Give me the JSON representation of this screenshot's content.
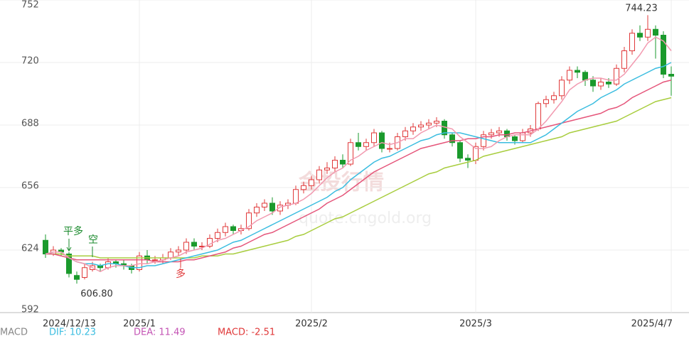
{
  "chart_data": {
    "type": "candlestick",
    "categories": [
      "2024/12/13",
      null,
      null,
      null,
      null,
      null,
      null,
      null,
      null,
      null,
      null,
      null,
      "2025/1",
      null,
      null,
      null,
      null,
      null,
      null,
      null,
      null,
      null,
      null,
      null,
      null,
      null,
      null,
      null,
      null,
      null,
      null,
      null,
      null,
      null,
      "2025/2",
      null,
      null,
      null,
      null,
      null,
      null,
      null,
      null,
      null,
      null,
      null,
      null,
      null,
      null,
      null,
      null,
      null,
      null,
      null,
      null,
      "2025/3",
      null,
      null,
      null,
      null,
      null,
      null,
      null,
      null,
      null,
      null,
      null,
      null,
      null,
      null,
      null,
      null,
      null,
      null,
      null,
      null,
      null,
      null,
      null,
      null,
      "2025/4/7"
    ],
    "open": [
      629,
      622,
      624,
      622,
      611,
      610,
      614,
      616,
      615,
      618,
      617,
      616,
      614,
      621,
      619,
      619,
      620,
      623,
      624,
      628,
      626,
      626,
      630,
      633,
      636,
      634,
      635,
      643,
      646,
      648,
      644,
      647,
      648,
      655,
      657,
      660,
      665,
      666,
      670,
      668,
      679,
      677,
      679,
      684,
      676,
      676,
      682,
      685,
      687,
      688,
      689,
      690,
      683,
      679,
      671,
      670,
      677,
      683,
      684,
      685,
      682,
      680,
      684,
      686,
      699,
      701,
      703,
      711,
      716,
      715,
      711,
      708,
      710,
      709,
      717,
      726,
      735,
      733,
      737,
      734,
      714
    ],
    "high": [
      632,
      626,
      625,
      623,
      613,
      617,
      618,
      617,
      620,
      619,
      619,
      617,
      623,
      624,
      621,
      622,
      625,
      626,
      630,
      630,
      628,
      632,
      635,
      638,
      637,
      637,
      645,
      648,
      650,
      651,
      649,
      650,
      657,
      659,
      662,
      667,
      669,
      672,
      673,
      681,
      684,
      681,
      686,
      685,
      679,
      684,
      687,
      689,
      690,
      691,
      692,
      691,
      684,
      680,
      673,
      679,
      685,
      686,
      687,
      686,
      683,
      686,
      688,
      700,
      703,
      705,
      713,
      718,
      718,
      716,
      713,
      712,
      712,
      719,
      728,
      737,
      739,
      744.23,
      739,
      736,
      718
    ],
    "low": [
      620,
      621,
      621,
      610,
      606.8,
      609,
      613,
      613,
      614,
      615,
      614,
      612,
      613,
      617,
      617,
      617,
      619,
      621,
      622,
      624,
      624,
      625,
      628,
      631,
      632,
      632,
      634,
      641,
      644,
      642,
      642,
      645,
      647,
      653,
      655,
      658,
      663,
      664,
      666,
      667,
      675,
      675,
      677,
      674,
      674,
      675,
      680,
      683,
      685,
      686,
      687,
      681,
      677,
      669,
      666,
      668,
      675,
      681,
      682,
      680,
      678,
      679,
      682,
      685,
      697,
      699,
      701,
      709,
      712,
      708,
      705,
      706,
      707,
      708,
      715,
      724,
      731,
      731,
      722,
      712,
      703
    ],
    "close": [
      622,
      624,
      623,
      612,
      609,
      615,
      616,
      615,
      618,
      617,
      616,
      614,
      621,
      619,
      619,
      620,
      623,
      624,
      628,
      626,
      626,
      630,
      633,
      636,
      634,
      635,
      643,
      646,
      648,
      644,
      647,
      648,
      655,
      657,
      660,
      665,
      666,
      670,
      668,
      679,
      677,
      679,
      684,
      676,
      676,
      682,
      685,
      687,
      688,
      689,
      690,
      683,
      679,
      671,
      670,
      677,
      683,
      684,
      685,
      682,
      680,
      684,
      686,
      699,
      701,
      703,
      711,
      716,
      715,
      711,
      708,
      710,
      709,
      717,
      726,
      735,
      733,
      737,
      734,
      714,
      713
    ],
    "up_color": "#e0393a",
    "down_color": "#1a9a2c",
    "series": [
      {
        "color": "#a8cd3e",
        "values": [
          622,
          622,
          622,
          621,
          621,
          621,
          621,
          620,
          620,
          620,
          620,
          620,
          620,
          620,
          620,
          620,
          620,
          620,
          620,
          620,
          621,
          621,
          621,
          622,
          622,
          623,
          624,
          625,
          626,
          627,
          628,
          629,
          631,
          632,
          634,
          636,
          638,
          640,
          641,
          643,
          645,
          647,
          649,
          651,
          653,
          655,
          657,
          659,
          661,
          663,
          664,
          666,
          667,
          668,
          669,
          670,
          672,
          673,
          674,
          675,
          676,
          677,
          678,
          679,
          680,
          681,
          682,
          684,
          685,
          686,
          687,
          688,
          689,
          690,
          692,
          694,
          696,
          698,
          700,
          701,
          702
        ]
      },
      {
        "color": "#e5557a",
        "values": [
          622,
          622,
          621,
          620,
          619,
          619,
          619,
          619,
          619,
          619,
          619,
          619,
          619,
          619,
          618,
          618,
          618,
          618,
          619,
          619,
          620,
          621,
          622,
          623,
          625,
          626,
          628,
          630,
          632,
          633,
          635,
          637,
          639,
          641,
          643,
          645,
          648,
          650,
          652,
          655,
          658,
          661,
          664,
          666,
          668,
          670,
          672,
          674,
          676,
          677,
          678,
          679,
          680,
          680,
          681,
          681,
          682,
          682,
          683,
          683,
          684,
          684,
          685,
          686,
          687,
          688,
          689,
          690,
          691,
          692,
          693,
          694,
          696,
          697,
          699,
          702,
          704,
          706,
          708,
          710,
          711
        ]
      },
      {
        "color": "#3bbde0",
        "values": [
          622,
          623,
          623,
          620,
          618,
          617,
          617,
          616,
          617,
          617,
          616,
          615,
          615,
          616,
          616,
          617,
          618,
          619,
          620,
          621,
          622,
          623,
          624,
          626,
          628,
          629,
          631,
          633,
          635,
          637,
          639,
          641,
          643,
          645,
          647,
          649,
          651,
          654,
          656,
          660,
          663,
          666,
          669,
          671,
          672,
          674,
          676,
          678,
          680,
          681,
          683,
          684,
          684,
          684,
          683,
          682,
          681,
          680,
          679,
          679,
          679,
          679,
          679,
          681,
          683,
          686,
          689,
          692,
          695,
          697,
          699,
          702,
          704,
          706,
          709,
          711,
          713,
          715,
          717,
          718,
          720
        ]
      },
      {
        "color": "#f29ab0",
        "values": [
          622,
          623,
          623,
          620,
          618,
          617,
          615,
          613,
          615,
          616,
          616,
          616,
          617,
          617,
          618,
          619,
          620,
          621,
          623,
          624,
          625,
          627,
          629,
          630,
          632,
          634,
          636,
          639,
          641,
          643,
          646,
          647,
          648,
          650,
          653,
          657,
          661,
          664,
          666,
          670,
          672,
          675,
          677,
          679,
          678,
          679,
          681,
          681,
          684,
          686,
          688,
          687,
          686,
          682,
          679,
          676,
          676,
          677,
          680,
          682,
          683,
          683,
          683,
          686,
          690,
          695,
          700,
          706,
          709,
          711,
          712,
          712,
          711,
          711,
          714,
          719,
          724,
          730,
          733,
          731,
          726
        ]
      }
    ],
    "ylim": [
      592,
      752
    ],
    "yticks": [
      592,
      624,
      656,
      688,
      720,
      752
    ],
    "grid": true,
    "annotations": {
      "high": "744.23",
      "low": "606.80",
      "signals": [
        "平多",
        "空",
        "多"
      ]
    },
    "watermark": [
      "金投行情",
      "quote.cngold.org"
    ],
    "indicator": {
      "name": "MACD",
      "items": [
        "DIF: 10.23",
        "DEA: 11.49",
        "MACD: -2.51"
      ],
      "colors": [
        "#3bbde0",
        "#c455b5",
        "#e0393a"
      ]
    }
  }
}
